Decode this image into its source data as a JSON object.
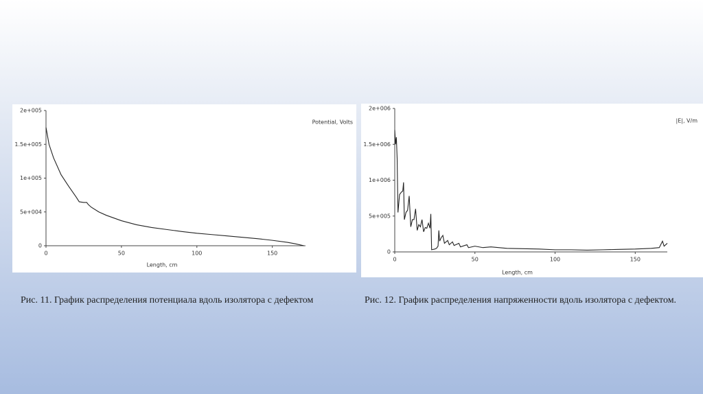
{
  "chart_data": [
    {
      "type": "line",
      "y_label": "Potential, Volts",
      "x_label": "Length, cm",
      "caption": "Рис. 11. График распределения потенциала вдоль изолятора с дефектом",
      "x": [
        0,
        2,
        5,
        10,
        15,
        20,
        22,
        25,
        27,
        28,
        30,
        35,
        40,
        50,
        60,
        70,
        80,
        90,
        100,
        110,
        120,
        130,
        140,
        150,
        160,
        165,
        170,
        171
      ],
      "values": [
        175000,
        150000,
        130000,
        105000,
        88000,
        72000,
        65000,
        64000,
        64000,
        61000,
        57000,
        50000,
        45000,
        37000,
        31000,
        27000,
        24000,
        21000,
        18500,
        16500,
        14500,
        12500,
        10500,
        8000,
        5000,
        3000,
        500,
        0
      ],
      "color": "#222222",
      "xlim": [
        0,
        172
      ],
      "xticks": [
        0,
        50,
        100,
        150
      ],
      "ylim": [
        0,
        200000
      ],
      "yticks": [
        0,
        {
          "value": 50000,
          "label": "5e+004"
        },
        {
          "value": 100000,
          "label": "1e+005"
        },
        {
          "value": 150000,
          "label": "1.5e+005"
        },
        {
          "value": 200000,
          "label": "2e+005"
        }
      ]
    },
    {
      "type": "line",
      "y_label": "|E|, V/m",
      "x_label": "Length, cm",
      "caption": "Рис. 12. График распределения напряженности вдоль изолятора с дефектом.",
      "x": [
        0,
        0.5,
        1,
        1.5,
        2,
        3,
        4,
        5,
        5.5,
        6,
        7,
        8,
        9,
        10,
        11,
        12,
        13,
        14,
        15,
        16,
        17,
        18,
        19,
        20,
        21,
        22,
        22.5,
        23,
        25,
        26,
        27,
        27.5,
        28,
        29,
        30,
        31,
        33,
        34,
        36,
        37,
        40,
        41,
        45,
        46,
        50,
        55,
        60,
        70,
        80,
        90,
        100,
        110,
        120,
        130,
        140,
        150,
        160,
        165,
        167,
        168,
        170
      ],
      "values": [
        1700000,
        1500000,
        1600000,
        1300000,
        550000,
        800000,
        830000,
        850000,
        970000,
        450000,
        550000,
        580000,
        780000,
        350000,
        450000,
        450000,
        600000,
        300000,
        380000,
        350000,
        450000,
        280000,
        340000,
        330000,
        400000,
        330000,
        530000,
        30000,
        40000,
        50000,
        80000,
        300000,
        150000,
        200000,
        230000,
        120000,
        160000,
        100000,
        140000,
        90000,
        120000,
        70000,
        100000,
        60000,
        80000,
        60000,
        70000,
        50000,
        45000,
        40000,
        30000,
        30000,
        25000,
        30000,
        35000,
        40000,
        50000,
        60000,
        150000,
        80000,
        120000
      ],
      "color": "#222222",
      "xlim": [
        0,
        170
      ],
      "xticks": [
        0,
        50,
        100,
        150
      ],
      "ylim": [
        0,
        2000000
      ],
      "yticks": [
        0,
        {
          "value": 500000,
          "label": "5e+005"
        },
        {
          "value": 1000000,
          "label": "1e+006"
        },
        {
          "value": 1500000,
          "label": "1.5e+006"
        },
        {
          "value": 2000000,
          "label": "2e+006"
        }
      ]
    }
  ]
}
